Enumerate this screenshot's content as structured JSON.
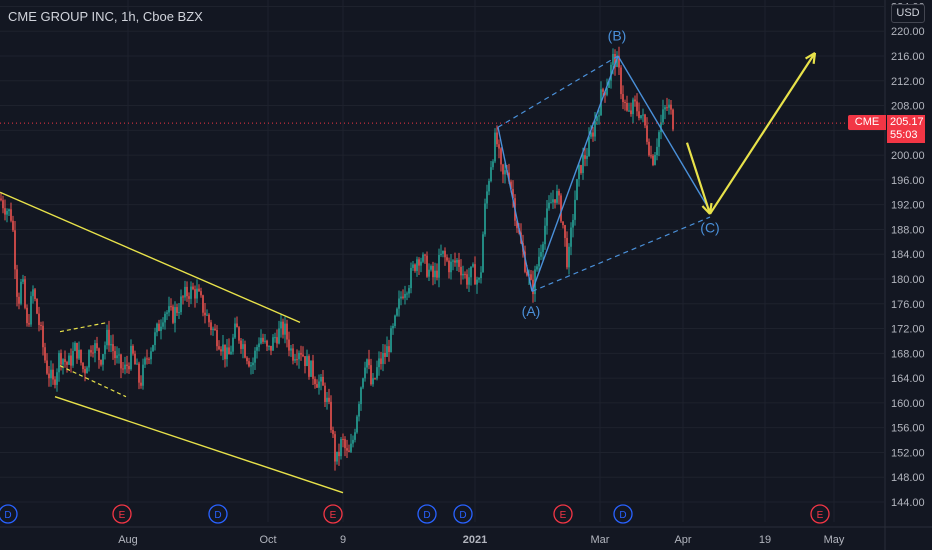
{
  "header": {
    "title": "CME GROUP INC, 1h, Cboe BZX",
    "currency": "USD"
  },
  "price_marker": {
    "symbol": "CME",
    "price": "205.17",
    "countdown": "55:03"
  },
  "colors": {
    "background": "#131722",
    "grid": "#1e222d",
    "up": "#26a69a",
    "down": "#ef5350",
    "trend": "#e8e24a",
    "wave": "#4a90d9",
    "price_line": "#f23645"
  },
  "chart_data": {
    "type": "candlestick",
    "title": "CME GROUP INC, 1h, Cboe BZX",
    "y_axis": {
      "ticks": [
        "144.00",
        "148.00",
        "152.00",
        "156.00",
        "160.00",
        "164.00",
        "168.00",
        "172.00",
        "176.00",
        "180.00",
        "184.00",
        "188.00",
        "192.00",
        "196.00",
        "200.00",
        "204.00",
        "208.00",
        "212.00",
        "216.00",
        "220.00",
        "224.00"
      ],
      "range": [
        142,
        225
      ],
      "position": "right"
    },
    "x_axis": {
      "labels": [
        "Aug",
        "Oct",
        "9",
        "2021",
        "Mar",
        "Apr",
        "19",
        "May"
      ],
      "bold": [
        "2021"
      ]
    },
    "series_path": [
      [
        0,
        193
      ],
      [
        12,
        190
      ],
      [
        18,
        176
      ],
      [
        22,
        180
      ],
      [
        27,
        172
      ],
      [
        33,
        178
      ],
      [
        40,
        172
      ],
      [
        46,
        166
      ],
      [
        53,
        163
      ],
      [
        60,
        168
      ],
      [
        68,
        166
      ],
      [
        76,
        169
      ],
      [
        84,
        165
      ],
      [
        92,
        170
      ],
      [
        100,
        167
      ],
      [
        108,
        171
      ],
      [
        116,
        167
      ],
      [
        124,
        165
      ],
      [
        132,
        168
      ],
      [
        140,
        163
      ],
      [
        148,
        168
      ],
      [
        156,
        171
      ],
      [
        164,
        175
      ],
      [
        172,
        174
      ],
      [
        180,
        176
      ],
      [
        188,
        178
      ],
      [
        196,
        178
      ],
      [
        204,
        175
      ],
      [
        212,
        172
      ],
      [
        220,
        170
      ],
      [
        228,
        167
      ],
      [
        236,
        172
      ],
      [
        244,
        169
      ],
      [
        252,
        166
      ],
      [
        260,
        171
      ],
      [
        268,
        168
      ],
      [
        276,
        171
      ],
      [
        284,
        172
      ],
      [
        292,
        168
      ],
      [
        300,
        169
      ],
      [
        308,
        166
      ],
      [
        316,
        164
      ],
      [
        324,
        162
      ],
      [
        330,
        158
      ],
      [
        336,
        150
      ],
      [
        342,
        154
      ],
      [
        348,
        151
      ],
      [
        352,
        153
      ],
      [
        360,
        162
      ],
      [
        366,
        168
      ],
      [
        372,
        162
      ],
      [
        378,
        166
      ],
      [
        386,
        168
      ],
      [
        394,
        172
      ],
      [
        402,
        178
      ],
      [
        410,
        180
      ],
      [
        418,
        184
      ],
      [
        426,
        182
      ],
      [
        434,
        180
      ],
      [
        442,
        184
      ],
      [
        450,
        182
      ],
      [
        458,
        183
      ],
      [
        466,
        180
      ],
      [
        474,
        181
      ],
      [
        480,
        179
      ],
      [
        484,
        190
      ],
      [
        490,
        198
      ],
      [
        496,
        203
      ],
      [
        502,
        196
      ],
      [
        508,
        198
      ],
      [
        514,
        192
      ],
      [
        520,
        186
      ],
      [
        526,
        182
      ],
      [
        532,
        178
      ],
      [
        538,
        183
      ],
      [
        544,
        188
      ],
      [
        550,
        192
      ],
      [
        556,
        194
      ],
      [
        562,
        190
      ],
      [
        568,
        182
      ],
      [
        574,
        192
      ],
      [
        580,
        198
      ],
      [
        588,
        201
      ],
      [
        596,
        206
      ],
      [
        602,
        210
      ],
      [
        608,
        212
      ],
      [
        614,
        216
      ],
      [
        618,
        214
      ],
      [
        622,
        210
      ],
      [
        628,
        206
      ],
      [
        634,
        208
      ],
      [
        640,
        207
      ],
      [
        646,
        204
      ],
      [
        652,
        199
      ],
      [
        658,
        203
      ],
      [
        664,
        207
      ],
      [
        668,
        208
      ],
      [
        674,
        205
      ]
    ],
    "annotations": {
      "labels": [
        {
          "text": "(A)",
          "x": 531,
          "y": 174
        },
        {
          "text": "(B)",
          "x": 617,
          "y": 218.5
        },
        {
          "text": "(C)",
          "x": 710,
          "y": 187.5
        }
      ],
      "trend_lines": [
        {
          "from": [
            0,
            194
          ],
          "to": [
            300,
            173
          ]
        },
        {
          "from": [
            55,
            161
          ],
          "to": [
            343,
            145.5
          ]
        }
      ],
      "pennant_lines": [
        {
          "from": [
            60,
            171.5
          ],
          "to": [
            108,
            173
          ]
        },
        {
          "from": [
            60,
            166
          ],
          "to": [
            126,
            161
          ]
        }
      ],
      "wave_lines": [
        {
          "from": [
            498,
            204.5
          ],
          "to": [
            532,
            178
          ]
        },
        {
          "from": [
            532,
            178
          ],
          "to": [
            618,
            216
          ]
        },
        {
          "from": [
            618,
            216
          ],
          "to": [
            710,
            191
          ]
        }
      ],
      "channel_lines": [
        {
          "from": [
            498,
            204.5
          ],
          "to": [
            618,
            216
          ]
        },
        {
          "from": [
            532,
            178
          ],
          "to": [
            710,
            190
          ]
        }
      ],
      "arrows": [
        {
          "from": [
            687,
            202
          ],
          "to": [
            710,
            190.5
          ]
        },
        {
          "from": [
            710,
            190.5
          ],
          "to": [
            815,
            216.5
          ]
        }
      ],
      "price_line": 205.17
    },
    "event_markers": [
      {
        "letter": "D",
        "x": 8
      },
      {
        "letter": "E",
        "x": 122
      },
      {
        "letter": "D",
        "x": 218
      },
      {
        "letter": "E",
        "x": 333
      },
      {
        "letter": "D",
        "x": 427
      },
      {
        "letter": "D",
        "x": 463
      },
      {
        "letter": "E",
        "x": 563
      },
      {
        "letter": "D",
        "x": 623
      },
      {
        "letter": "E",
        "x": 820
      }
    ],
    "x_label_positions": [
      128,
      268,
      343,
      475,
      600,
      683,
      765,
      834
    ],
    "grid": true
  }
}
